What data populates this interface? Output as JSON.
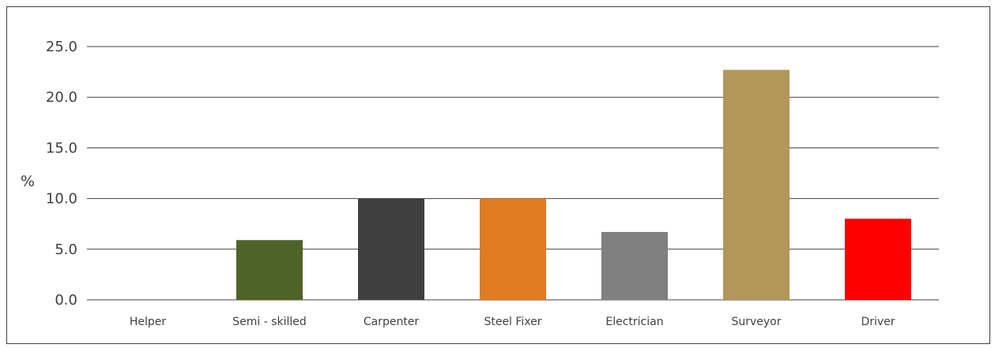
{
  "chart_data": {
    "type": "bar",
    "title": "",
    "xlabel": "",
    "ylabel": "%",
    "categories": [
      "Helper",
      "Semi - skilled",
      "Carpenter",
      "Steel Fixer",
      "Electrician",
      "Surveyor",
      "Driver"
    ],
    "values": [
      0.0,
      5.9,
      10.0,
      10.0,
      6.7,
      22.7,
      8.0
    ],
    "colors": [
      "#8b8b8b",
      "#4f6228",
      "#3f3f3f",
      "#e07b21",
      "#808080",
      "#b3965a",
      "#ff0000"
    ],
    "ylim": [
      0,
      25
    ],
    "yticks": [
      "0.0",
      "5.0",
      "10.0",
      "15.0",
      "20.0",
      "25.0"
    ],
    "grid": true,
    "legend": "none"
  }
}
